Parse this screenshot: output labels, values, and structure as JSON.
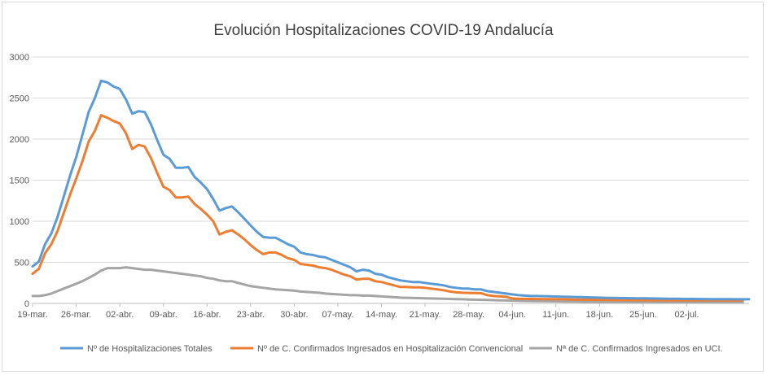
{
  "chart_data": {
    "type": "line",
    "title": "Evolución Hospitalizaciones COVID-19 Andalucía",
    "xlabel": "",
    "ylabel": "",
    "ylim": [
      0,
      3000
    ],
    "yticks": [
      0,
      500,
      1000,
      1500,
      2000,
      2500,
      3000
    ],
    "grid": true,
    "legend_position": "bottom",
    "start_date": "2020-03-19",
    "x_tick_labels": [
      "19-mar.",
      "26-mar.",
      "02-abr.",
      "09-abr.",
      "16-abr.",
      "23-abr.",
      "30-abr.",
      "07-may.",
      "14-may.",
      "21-may.",
      "28-may.",
      "04-jun.",
      "11-jun.",
      "18-jun.",
      "25-jun.",
      "02-jul."
    ],
    "series": [
      {
        "name": "Nº de Hospitalizaciones Totales",
        "color": "#5b9bd5",
        "values": [
          450,
          510,
          720,
          850,
          1050,
          1300,
          1550,
          1780,
          2050,
          2330,
          2500,
          2710,
          2690,
          2640,
          2610,
          2480,
          2310,
          2340,
          2330,
          2180,
          1990,
          1810,
          1760,
          1650,
          1650,
          1660,
          1540,
          1470,
          1390,
          1270,
          1130,
          1160,
          1180,
          1110,
          1030,
          950,
          870,
          810,
          800,
          800,
          760,
          720,
          690,
          620,
          600,
          590,
          570,
          560,
          530,
          500,
          470,
          440,
          390,
          410,
          400,
          360,
          350,
          320,
          300,
          280,
          270,
          260,
          260,
          250,
          240,
          230,
          220,
          200,
          190,
          180,
          180,
          170,
          170,
          150,
          140,
          130,
          120,
          110,
          100,
          95,
          90,
          90,
          88,
          86,
          84,
          82,
          80,
          78,
          76,
          74,
          72,
          70,
          68,
          66,
          65,
          64,
          63,
          62,
          61,
          60,
          59,
          58,
          57,
          56,
          55,
          54,
          54,
          53,
          53,
          52,
          52,
          51,
          51,
          50,
          50,
          50
        ]
      },
      {
        "name": "Nº de C. Confirmados Ingresados en Hospitalización Convencional",
        "color": "#ed7d31",
        "values": [
          360,
          420,
          610,
          720,
          880,
          1100,
          1320,
          1520,
          1730,
          1970,
          2100,
          2290,
          2260,
          2220,
          2190,
          2070,
          1880,
          1930,
          1910,
          1770,
          1590,
          1420,
          1380,
          1290,
          1290,
          1300,
          1210,
          1150,
          1080,
          1000,
          840,
          870,
          890,
          840,
          780,
          710,
          650,
          600,
          620,
          620,
          590,
          550,
          530,
          480,
          470,
          460,
          440,
          430,
          410,
          380,
          350,
          330,
          290,
          300,
          300,
          270,
          260,
          240,
          220,
          200,
          200,
          195,
          195,
          190,
          180,
          170,
          160,
          145,
          135,
          130,
          128,
          126,
          124,
          100,
          90,
          85,
          80,
          60,
          56,
          55,
          54,
          53,
          52,
          51,
          50,
          50,
          49,
          48,
          47,
          46,
          45,
          44,
          43,
          42,
          41,
          41,
          40,
          40,
          40,
          39,
          39,
          39,
          38,
          38,
          38,
          38,
          38,
          38,
          38,
          37,
          37,
          37,
          37,
          37,
          37
        ]
      },
      {
        "name": "Nª de C. Confirmados Ingresados en UCI.",
        "color": "#a5a5a5",
        "values": [
          90,
          90,
          100,
          120,
          150,
          180,
          210,
          240,
          270,
          310,
          350,
          400,
          430,
          430,
          430,
          440,
          430,
          420,
          410,
          410,
          400,
          390,
          380,
          370,
          360,
          350,
          340,
          330,
          310,
          300,
          280,
          270,
          270,
          250,
          230,
          210,
          200,
          190,
          180,
          170,
          165,
          160,
          155,
          145,
          140,
          135,
          130,
          120,
          115,
          110,
          105,
          100,
          100,
          95,
          95,
          90,
          85,
          80,
          75,
          70,
          68,
          66,
          64,
          62,
          60,
          58,
          56,
          54,
          52,
          50,
          48,
          46,
          44,
          42,
          40,
          38,
          36,
          34,
          32,
          30,
          29,
          28,
          27,
          26,
          25,
          24,
          23,
          22,
          21,
          20,
          20,
          19,
          19,
          18,
          18,
          17,
          17,
          16,
          16,
          16,
          15,
          15,
          15,
          15,
          14,
          14,
          14,
          14,
          14,
          13,
          13,
          13,
          13,
          13,
          13
        ]
      }
    ]
  }
}
